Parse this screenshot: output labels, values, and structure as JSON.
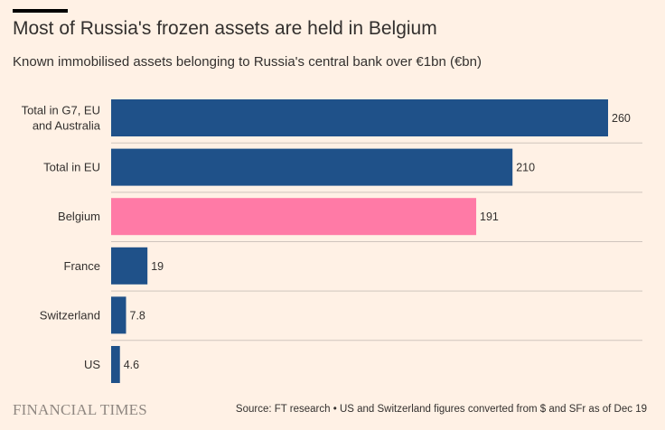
{
  "title": "Most of Russia's frozen assets are held in Belgium",
  "subtitle": "Known immobilised assets belonging to Russia's central bank over €1bn (€bn)",
  "logo": "FINANCIAL TIMES",
  "source": "Source: FT research • US and Switzerland figures converted from $ and SFr as of Dec 19",
  "colors": {
    "background": "#fff1e5",
    "bar": "#1f5189",
    "highlight": "#ff7aa6",
    "gridline": "#cfc5bd",
    "text": "#33302e"
  },
  "chart_data": {
    "type": "bar",
    "orientation": "horizontal",
    "unit": "€bn",
    "xlim": [
      0,
      280
    ],
    "categories": [
      [
        "Total in G7, EU",
        "and Australia"
      ],
      [
        "Total in EU"
      ],
      [
        "Belgium"
      ],
      [
        "France"
      ],
      [
        "Switzerland"
      ],
      [
        "US"
      ]
    ],
    "values": [
      260,
      210,
      191,
      19,
      7.8,
      4.6
    ],
    "value_labels": [
      "260",
      "210",
      "191",
      "19",
      "7.8",
      "4.6"
    ],
    "highlight_index": 2
  }
}
